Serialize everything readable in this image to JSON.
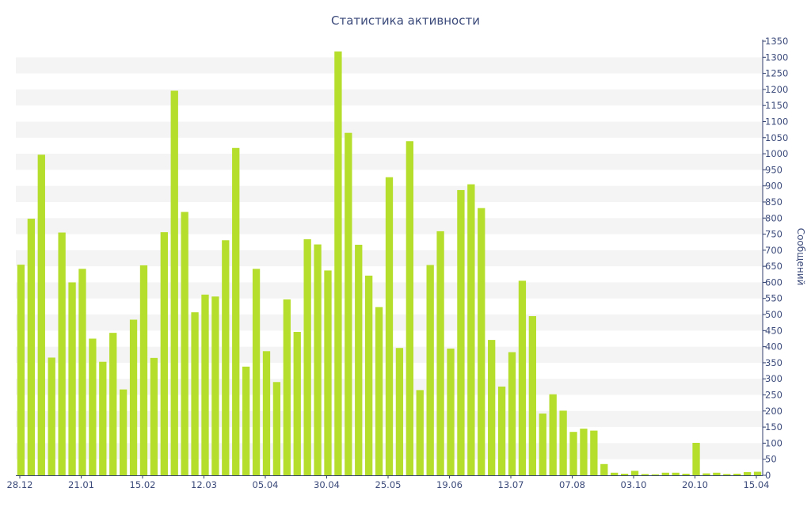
{
  "chart_data": {
    "type": "bar",
    "title": "Статистика активности",
    "xlabel": "",
    "ylabel": "Сообщений",
    "ylim": [
      0,
      1350
    ],
    "y_ticks": [
      0,
      50,
      100,
      150,
      200,
      250,
      300,
      350,
      400,
      450,
      500,
      550,
      600,
      650,
      700,
      750,
      800,
      850,
      900,
      950,
      1000,
      1050,
      1100,
      1150,
      1200,
      1250,
      1300,
      1350
    ],
    "x_tick_labels": [
      "28.12",
      "21.01",
      "15.02",
      "12.03",
      "05.04",
      "30.04",
      "25.05",
      "19.06",
      "13.07",
      "07.08",
      "03.10",
      "20.10",
      "15.04"
    ],
    "y_axis_position": "right",
    "grid": "horizontal bands",
    "legend": "none",
    "values": [
      655,
      798,
      997,
      366,
      755,
      600,
      642,
      425,
      353,
      443,
      267,
      484,
      653,
      365,
      756,
      1196,
      819,
      507,
      562,
      556,
      731,
      1018,
      338,
      642,
      386,
      290,
      547,
      446,
      734,
      718,
      637,
      1318,
      1065,
      717,
      621,
      523,
      927,
      396,
      1039,
      265,
      654,
      759,
      394,
      887,
      905,
      831,
      421,
      276,
      383,
      605,
      495,
      192,
      252,
      201,
      135,
      145,
      139,
      35,
      8,
      5,
      14,
      4,
      3,
      8,
      8,
      5,
      101,
      6,
      8,
      4,
      5,
      10,
      11
    ],
    "colors": {
      "bar": "#b5dd2b",
      "band": "#f4f4f4",
      "text": "#3b4a7a",
      "axis": "#2f3e6e"
    }
  }
}
